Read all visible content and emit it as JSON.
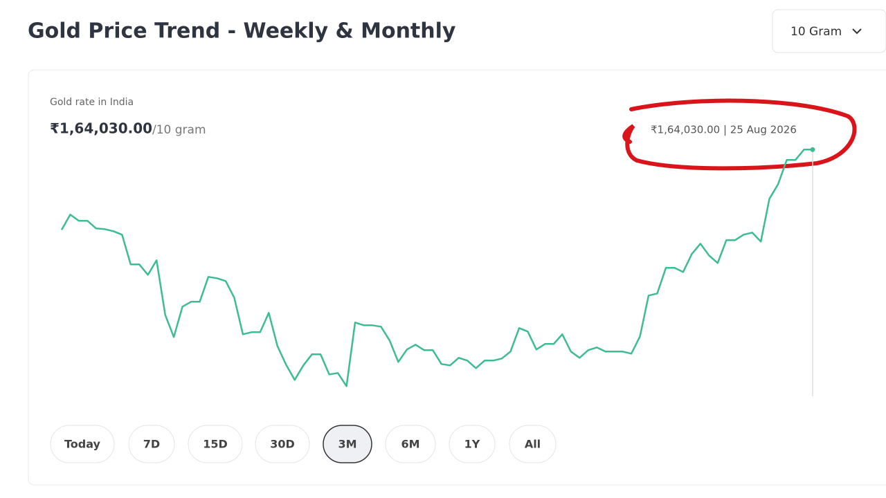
{
  "header": {
    "title": "Gold Price Trend - Weekly & Monthly",
    "unit_selector": "10 Gram"
  },
  "chart_data": {
    "type": "line",
    "label": "Gold rate in India",
    "price": "₹1,64,030.00",
    "per_unit": "/10 gram",
    "tooltip": "₹1,64,030.00 | 25 Aug 2026",
    "color": "#3dbb93",
    "ylim": [
      153000,
      165000
    ],
    "values": [
      160550,
      161210,
      160940,
      160940,
      160610,
      160580,
      160490,
      160340,
      159050,
      159050,
      158600,
      159230,
      156860,
      155900,
      157220,
      157430,
      157430,
      158510,
      158450,
      158330,
      157610,
      156020,
      156110,
      156110,
      156950,
      155510,
      154700,
      154040,
      154670,
      155150,
      155150,
      154280,
      154340,
      153770,
      156530,
      156410,
      156410,
      156350,
      155750,
      154820,
      155360,
      155570,
      155330,
      155330,
      154730,
      154670,
      155000,
      154880,
      154550,
      154880,
      154880,
      154970,
      155270,
      156290,
      156140,
      155360,
      155600,
      155600,
      156020,
      155270,
      155000,
      155330,
      155450,
      155270,
      155270,
      155270,
      155180,
      155930,
      157700,
      157790,
      158900,
      158900,
      158720,
      159500,
      159950,
      159440,
      159110,
      160100,
      160100,
      160340,
      160430,
      160040,
      161900,
      162530,
      163580,
      163580,
      164030,
      164030
    ]
  },
  "range_buttons": [
    "Today",
    "7D",
    "15D",
    "30D",
    "3M",
    "6M",
    "1Y",
    "All"
  ],
  "selected_range": 4
}
